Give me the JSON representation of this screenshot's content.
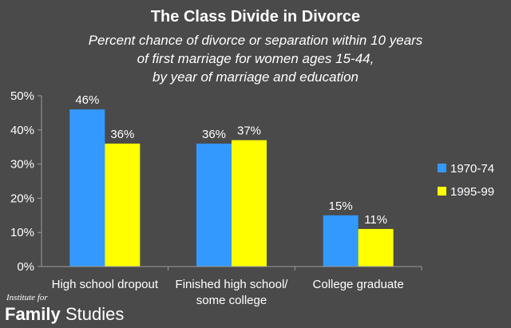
{
  "chart_data": {
    "type": "bar",
    "title": "The Class Divide in Divorce",
    "subtitle_lines": [
      "Percent chance of divorce or separation within 10 years",
      "of first marriage for women ages 15-44,",
      "by year of marriage and education"
    ],
    "categories": [
      [
        "High school dropout"
      ],
      [
        "Finished high school/",
        "some college"
      ],
      [
        "College graduate"
      ]
    ],
    "series": [
      {
        "name": "1970-74",
        "color": "#3399ff",
        "values": [
          46,
          36,
          15
        ],
        "labels": [
          "46%",
          "36%",
          "15%"
        ]
      },
      {
        "name": "1995-99",
        "color": "#ffff00",
        "values": [
          36,
          37,
          11
        ],
        "labels": [
          "36%",
          "37%",
          "11%"
        ]
      }
    ],
    "ylim": [
      0,
      50
    ],
    "yticks": [
      0,
      10,
      20,
      30,
      40,
      50
    ],
    "ytick_labels": [
      "0%",
      "10%",
      "20%",
      "30%",
      "40%",
      "50%"
    ],
    "xlabel": "",
    "ylabel": "",
    "grid": false,
    "legend_position": "right"
  },
  "logo": {
    "line1": "Institute for",
    "word1": "Family",
    "word2": "Studies"
  },
  "colors": {
    "background": "#4a4a4a",
    "axis": "#9a9a9a"
  }
}
